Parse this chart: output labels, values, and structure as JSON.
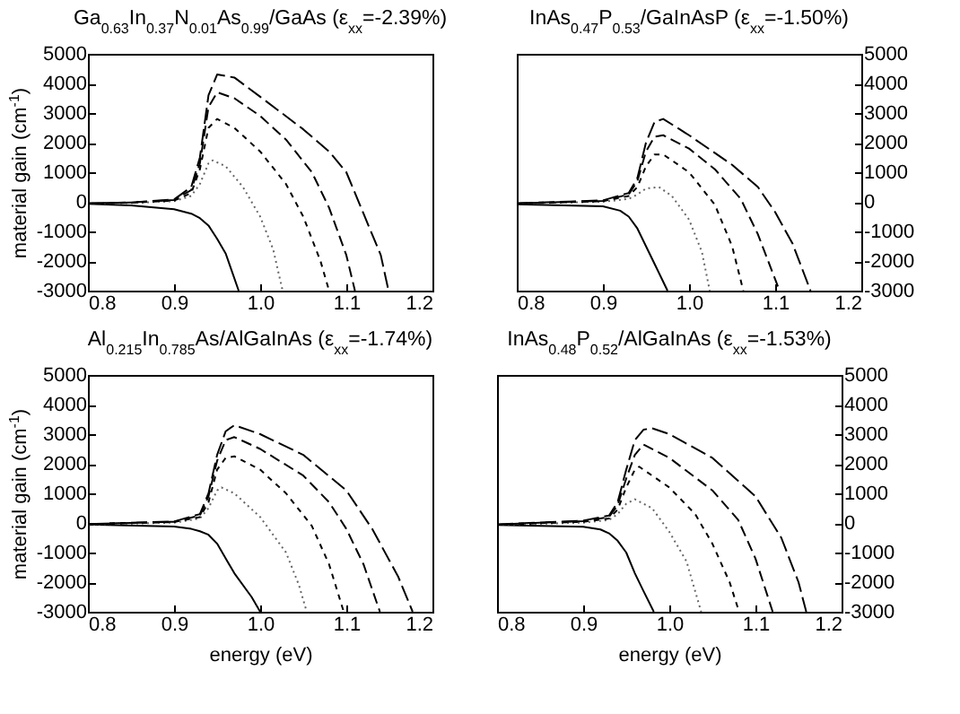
{
  "chart_data": [
    {
      "type": "line",
      "title": "Ga$_{0.63}$In$_{0.37}$N$_{0.01}$As$_{0.99}$/GaAs (ε$_{xx}$=-2.39%)",
      "ylabel": "material gain (cm$^{-1}$)",
      "xlim": [
        0.8,
        1.2
      ],
      "xticks": [
        {
          "value": 0.8,
          "label": "0.8"
        },
        {
          "value": 0.9,
          "label": "0.9"
        },
        {
          "value": 1,
          "label": "1.0"
        },
        {
          "value": 1.1,
          "label": "1.1"
        },
        {
          "value": 1.2,
          "label": "1.2"
        }
      ],
      "ylim": [
        -3000,
        5000
      ],
      "yticks": [
        -3000,
        -2000,
        -1000,
        0,
        1000,
        2000,
        3000,
        4000,
        5000
      ],
      "grid": false,
      "series": [
        {
          "color": "#000000",
          "line_style": "solid",
          "x": [
            0.8,
            0.85,
            0.9,
            0.92,
            0.93,
            0.94,
            0.95,
            0.96,
            0.975
          ],
          "values": [
            -70,
            -120,
            -250,
            -400,
            -550,
            -800,
            -1250,
            -1750,
            -3000
          ]
        },
        {
          "color": "#666666",
          "line_style": "dotted",
          "x": [
            0.8,
            0.85,
            0.9,
            0.92,
            0.93,
            0.94,
            0.945,
            0.96,
            0.98,
            1.0,
            1.015,
            1.026
          ],
          "values": [
            -60,
            -40,
            20,
            200,
            600,
            1300,
            1400,
            1200,
            500,
            -500,
            -1600,
            -3000
          ]
        },
        {
          "color": "#000000",
          "line_style": "dashed",
          "x": [
            0.8,
            0.85,
            0.9,
            0.92,
            0.93,
            0.94,
            0.95,
            0.97,
            1.0,
            1.03,
            1.05,
            1.07,
            1.08
          ],
          "values": [
            -60,
            -30,
            40,
            300,
            1100,
            2500,
            2800,
            2500,
            1700,
            600,
            -500,
            -2000,
            -3000
          ]
        },
        {
          "color": "#000000",
          "line_style": "dashed",
          "x": [
            0.8,
            0.85,
            0.9,
            0.92,
            0.93,
            0.94,
            0.95,
            0.97,
            1.0,
            1.03,
            1.06,
            1.08,
            1.1,
            1.11
          ],
          "values": [
            -50,
            -20,
            60,
            400,
            1300,
            3200,
            3700,
            3500,
            2900,
            2100,
            1000,
            -200,
            -1800,
            -3000
          ]
        },
        {
          "color": "#000000",
          "line_style": "dashed",
          "x": [
            0.8,
            0.85,
            0.9,
            0.92,
            0.93,
            0.94,
            0.95,
            0.97,
            1.0,
            1.05,
            1.08,
            1.1,
            1.12,
            1.14,
            1.149
          ],
          "values": [
            -50,
            -20,
            80,
            500,
            1500,
            3600,
            4300,
            4200,
            3550,
            2450,
            1700,
            1000,
            -400,
            -1800,
            -3000
          ]
        }
      ]
    },
    {
      "type": "line",
      "title": "InAs$_{0.47}$P$_{0.53}$/GaInAsP (ε$_{xx}$=-1.50%)",
      "xlim": [
        0.8,
        1.2
      ],
      "xticks": [
        {
          "value": 0.8,
          "label": "0.8"
        },
        {
          "value": 0.9,
          "label": "0.9"
        },
        {
          "value": 1,
          "label": "1.0"
        },
        {
          "value": 1.1,
          "label": "1.1"
        },
        {
          "value": 1.2,
          "label": "1.2"
        }
      ],
      "y2lim": [
        -3000,
        5000
      ],
      "y2ticks": [
        -3000,
        -2000,
        -1000,
        0,
        1000,
        2000,
        3000,
        4000,
        5000
      ],
      "grid": false,
      "series": [
        {
          "color": "#000000",
          "line_style": "solid",
          "axis": "y2",
          "x": [
            0.8,
            0.9,
            0.92,
            0.93,
            0.94,
            0.95,
            0.96,
            0.975
          ],
          "values": [
            -80,
            -150,
            -300,
            -500,
            -900,
            -1500,
            -2100,
            -3000
          ]
        },
        {
          "color": "#666666",
          "line_style": "dotted",
          "axis": "y2",
          "x": [
            0.8,
            0.9,
            0.93,
            0.94,
            0.95,
            0.965,
            0.98,
            1.0,
            1.015,
            1.024
          ],
          "values": [
            -60,
            0,
            100,
            250,
            450,
            500,
            200,
            -600,
            -1700,
            -3000
          ]
        },
        {
          "color": "#000000",
          "line_style": "dashed",
          "axis": "y2",
          "x": [
            0.8,
            0.9,
            0.93,
            0.94,
            0.95,
            0.96,
            0.97,
            1.0,
            1.03,
            1.05,
            1.063
          ],
          "values": [
            -60,
            20,
            200,
            500,
            1200,
            1600,
            1600,
            1000,
            -100,
            -1500,
            -3000
          ]
        },
        {
          "color": "#000000",
          "line_style": "dashed",
          "axis": "y2",
          "x": [
            0.8,
            0.9,
            0.93,
            0.94,
            0.95,
            0.96,
            0.97,
            1.0,
            1.03,
            1.06,
            1.08,
            1.105
          ],
          "values": [
            -50,
            30,
            250,
            700,
            1700,
            2200,
            2250,
            1800,
            1100,
            100,
            -1100,
            -3000
          ]
        },
        {
          "color": "#000000",
          "line_style": "dashed",
          "axis": "y2",
          "x": [
            0.8,
            0.9,
            0.93,
            0.94,
            0.95,
            0.96,
            0.97,
            1.0,
            1.05,
            1.08,
            1.1,
            1.12,
            1.141
          ],
          "values": [
            -50,
            50,
            300,
            800,
            2000,
            2700,
            2800,
            2250,
            1250,
            500,
            -350,
            -1400,
            -3000
          ]
        }
      ]
    },
    {
      "type": "line",
      "title": "Al$_{0.215}$In$_{0.785}$As/AlGaInAs (ε$_{xx}$=-1.74%)",
      "xlabel": "energy (eV)",
      "ylabel": "material gain (cm$^{-1}$)",
      "xlim": [
        0.8,
        1.2
      ],
      "xticks": [
        {
          "value": 0.8,
          "label": "0.8"
        },
        {
          "value": 0.9,
          "label": "0.9"
        },
        {
          "value": 1,
          "label": "1.0"
        },
        {
          "value": 1.1,
          "label": "1.1"
        },
        {
          "value": 1.2,
          "label": "1.2"
        }
      ],
      "ylim": [
        -3000,
        5000
      ],
      "yticks": [
        -3000,
        -2000,
        -1000,
        0,
        1000,
        2000,
        3000,
        4000,
        5000
      ],
      "grid": false,
      "series": [
        {
          "color": "#000000",
          "line_style": "solid",
          "x": [
            0.8,
            0.9,
            0.92,
            0.93,
            0.94,
            0.95,
            0.97,
            0.99,
            1.0
          ],
          "values": [
            -50,
            -120,
            -200,
            -280,
            -400,
            -700,
            -1700,
            -2500,
            -3000
          ]
        },
        {
          "color": "#666666",
          "line_style": "dotted",
          "x": [
            0.8,
            0.9,
            0.93,
            0.94,
            0.95,
            0.955,
            0.97,
            1.0,
            1.03,
            1.045,
            1.054
          ],
          "values": [
            -50,
            10,
            150,
            500,
            1100,
            1200,
            1000,
            200,
            -1000,
            -2100,
            -3000
          ]
        },
        {
          "color": "#000000",
          "line_style": "dashed",
          "x": [
            0.8,
            0.9,
            0.93,
            0.94,
            0.95,
            0.96,
            0.97,
            1.0,
            1.03,
            1.06,
            1.08,
            1.097
          ],
          "values": [
            -40,
            30,
            200,
            700,
            1800,
            2200,
            2250,
            1800,
            1000,
            -100,
            -1400,
            -3000
          ]
        },
        {
          "color": "#000000",
          "line_style": "dashed",
          "x": [
            0.8,
            0.9,
            0.93,
            0.94,
            0.95,
            0.96,
            0.97,
            1.0,
            1.05,
            1.08,
            1.1,
            1.12,
            1.139
          ],
          "values": [
            -40,
            40,
            250,
            900,
            2100,
            2800,
            2900,
            2500,
            1600,
            700,
            -200,
            -1400,
            -3000
          ]
        },
        {
          "color": "#000000",
          "line_style": "dashed",
          "x": [
            0.8,
            0.9,
            0.93,
            0.94,
            0.95,
            0.96,
            0.97,
            1.0,
            1.05,
            1.1,
            1.13,
            1.16,
            1.177
          ],
          "values": [
            -40,
            50,
            300,
            1000,
            2300,
            3100,
            3300,
            3000,
            2300,
            1100,
            -200,
            -1800,
            -3000
          ]
        }
      ]
    },
    {
      "type": "line",
      "title": "InAs$_{0.48}$P$_{0.52}$/AlGaInAs (ε$_{xx}$=-1.53%)",
      "xlabel": "energy (eV)",
      "xlim": [
        0.8,
        1.2
      ],
      "xticks": [
        {
          "value": 0.8,
          "label": "0.8"
        },
        {
          "value": 0.9,
          "label": "0.9"
        },
        {
          "value": 1,
          "label": "1.0"
        },
        {
          "value": 1.1,
          "label": "1.1"
        },
        {
          "value": 1.2,
          "label": "1.2"
        }
      ],
      "y2lim": [
        -3000,
        5000
      ],
      "y2ticks": [
        -3000,
        -2000,
        -1000,
        0,
        1000,
        2000,
        3000,
        4000,
        5000
      ],
      "grid": false,
      "series": [
        {
          "color": "#000000",
          "line_style": "solid",
          "axis": "y2",
          "x": [
            0.8,
            0.9,
            0.92,
            0.93,
            0.94,
            0.95,
            0.96,
            0.97,
            0.982
          ],
          "values": [
            -70,
            -130,
            -220,
            -350,
            -600,
            -1000,
            -1700,
            -2300,
            -3000
          ]
        },
        {
          "color": "#666666",
          "line_style": "dotted",
          "axis": "y2",
          "x": [
            0.8,
            0.9,
            0.93,
            0.94,
            0.95,
            0.96,
            0.98,
            1.0,
            1.02,
            1.037
          ],
          "values": [
            -60,
            10,
            100,
            300,
            650,
            800,
            500,
            -300,
            -1300,
            -3000
          ]
        },
        {
          "color": "#000000",
          "line_style": "dashed",
          "axis": "y2",
          "x": [
            0.8,
            0.9,
            0.93,
            0.94,
            0.95,
            0.96,
            0.965,
            1.0,
            1.03,
            1.05,
            1.07,
            1.081
          ],
          "values": [
            -60,
            40,
            150,
            450,
            1200,
            1800,
            1900,
            1200,
            300,
            -700,
            -2000,
            -3000
          ]
        },
        {
          "color": "#000000",
          "line_style": "dashed",
          "axis": "y2",
          "x": [
            0.8,
            0.9,
            0.93,
            0.94,
            0.95,
            0.96,
            0.97,
            1.0,
            1.05,
            1.08,
            1.1,
            1.12
          ],
          "values": [
            -50,
            60,
            200,
            600,
            1500,
            2300,
            2650,
            2200,
            1100,
            100,
            -1200,
            -3000
          ]
        },
        {
          "color": "#000000",
          "line_style": "dashed",
          "axis": "y2",
          "x": [
            0.8,
            0.9,
            0.93,
            0.94,
            0.95,
            0.96,
            0.97,
            0.98,
            1.0,
            1.05,
            1.1,
            1.13,
            1.15,
            1.159
          ],
          "values": [
            -50,
            80,
            250,
            700,
            1800,
            2800,
            3150,
            3200,
            3000,
            2200,
            900,
            -500,
            -2000,
            -3000
          ]
        }
      ]
    }
  ]
}
